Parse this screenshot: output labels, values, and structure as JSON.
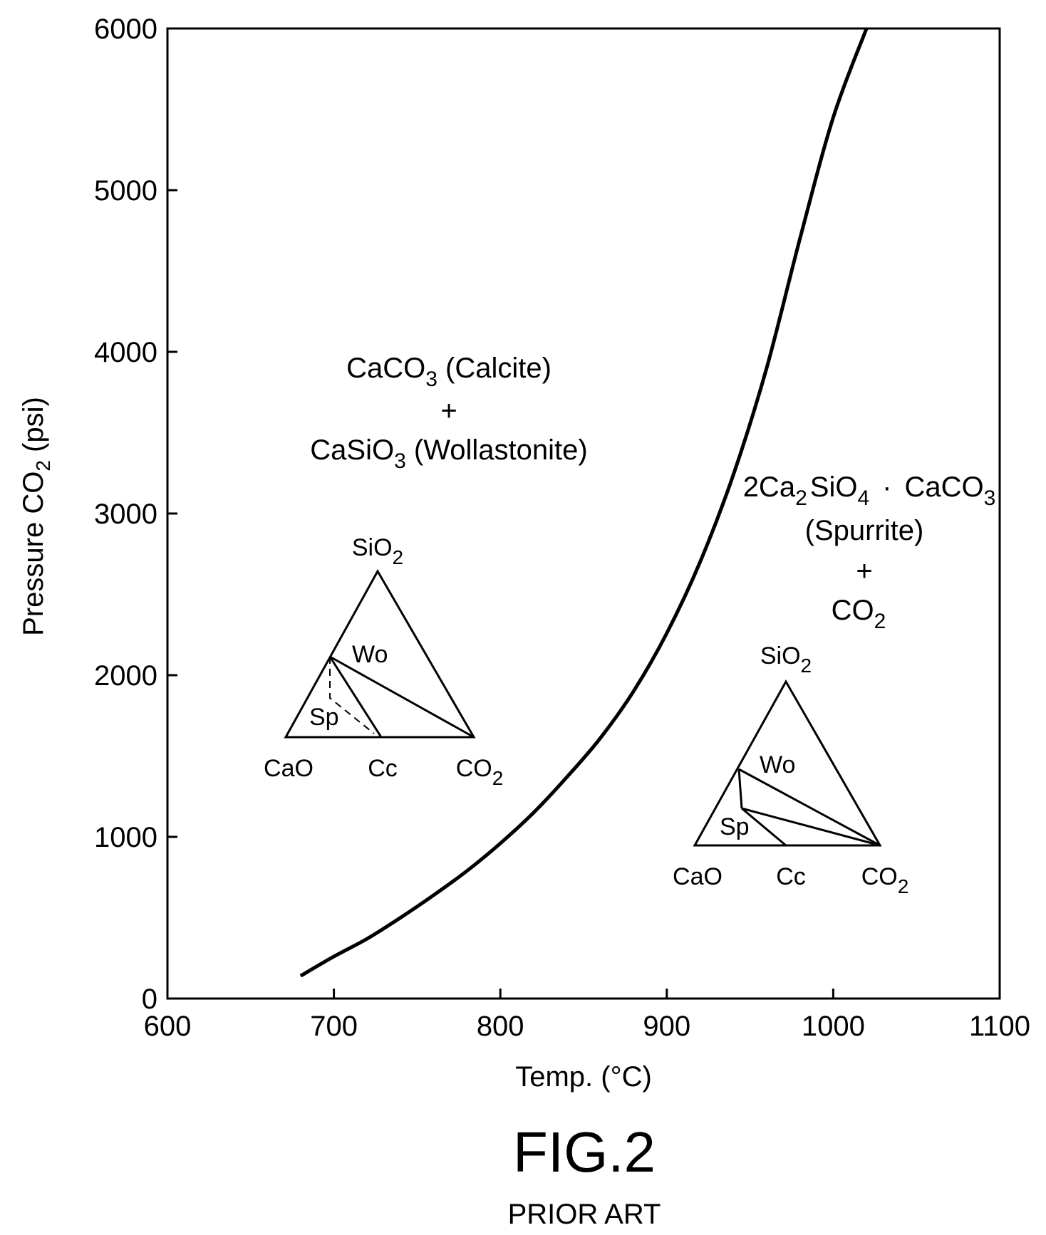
{
  "chart_data": {
    "type": "line",
    "xlabel": "Temp. (°C)",
    "ylabel_main": "Pressure CO",
    "ylabel_sub": "2",
    "ylabel_tail": " (psi)",
    "xlim": [
      600,
      1100
    ],
    "ylim": [
      0,
      6000
    ],
    "x_ticks": [
      600,
      700,
      800,
      900,
      1000,
      1100
    ],
    "y_ticks": [
      0,
      1000,
      2000,
      3000,
      4000,
      5000,
      6000
    ],
    "grid": false,
    "series": [
      {
        "x": [
          680,
          700,
          720,
          740,
          760,
          780,
          800,
          820,
          840,
          860,
          880,
          900,
          920,
          940,
          960,
          980,
          1000,
          1020
        ],
        "y": [
          140,
          260,
          370,
          500,
          640,
          790,
          960,
          1150,
          1370,
          1610,
          1900,
          2260,
          2700,
          3240,
          3900,
          4700,
          5450,
          6000
        ]
      }
    ],
    "annotations": {
      "left_region": {
        "line1_main": "CaCO",
        "line1_sub": "3",
        "line1_tail": " (Calcite)",
        "plus": "+",
        "line2_main": "CaSiO",
        "line2_sub": "3",
        "line2_tail": " (Wollastonite)"
      },
      "right_region": {
        "line1_a": "2Ca",
        "line1_a_sub": "2",
        "line1_b": "SiO",
        "line1_b_sub": "4",
        "line1_dot": "·",
        "line1_c": "CaCO",
        "line1_c_sub": "3",
        "line2": "(Spurrite)",
        "plus": "+",
        "line3_main": "CO",
        "line3_sub": "2"
      },
      "triangles": {
        "apex_main": "SiO",
        "apex_sub": "2",
        "wo": "Wo",
        "sp": "Sp",
        "cao": "CaO",
        "cc": "Cc",
        "co2_main": "CO",
        "co2_sub": "2"
      }
    }
  },
  "caption": {
    "figure": "FIG.2",
    "subtitle": "PRIOR ART"
  }
}
